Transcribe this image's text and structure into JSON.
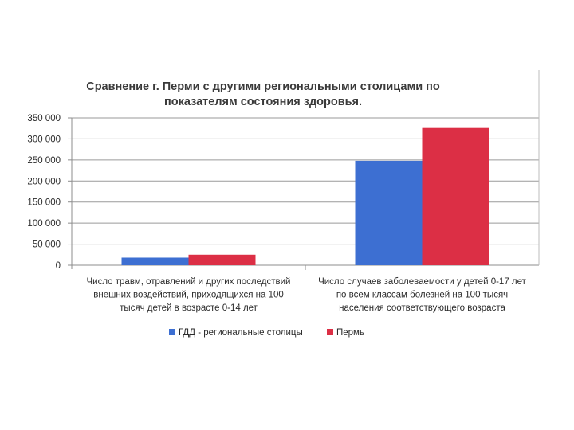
{
  "chart_data": {
    "type": "bar",
    "title_lines": [
      "Сравнение г. Перми с другими региональными столицами по",
      "показателям состояния здоровья."
    ],
    "categories": [
      [
        "Число травм, отравлений и других последствий",
        "внешних воздействий, приходящихся на 100",
        "тысяч детей в возрасте 0-14 лет"
      ],
      [
        "Число случаев заболеваемости у детей 0-17 лет",
        "по всем классам болезней на 100 тысяч",
        "населения соответствующего возраста"
      ]
    ],
    "series": [
      {
        "name": "ГДД - региональные столицы",
        "color": "#3d6fd2",
        "values": [
          18000,
          248000
        ]
      },
      {
        "name": "Пермь",
        "color": "#dc2f45",
        "values": [
          25000,
          326000
        ]
      }
    ],
    "ylim": [
      0,
      350000
    ],
    "yticks": [
      "0",
      "50 000",
      "100 000",
      "150 000",
      "200 000",
      "250 000",
      "300 000",
      "350 000"
    ],
    "grid": true,
    "legend_position": "bottom"
  }
}
